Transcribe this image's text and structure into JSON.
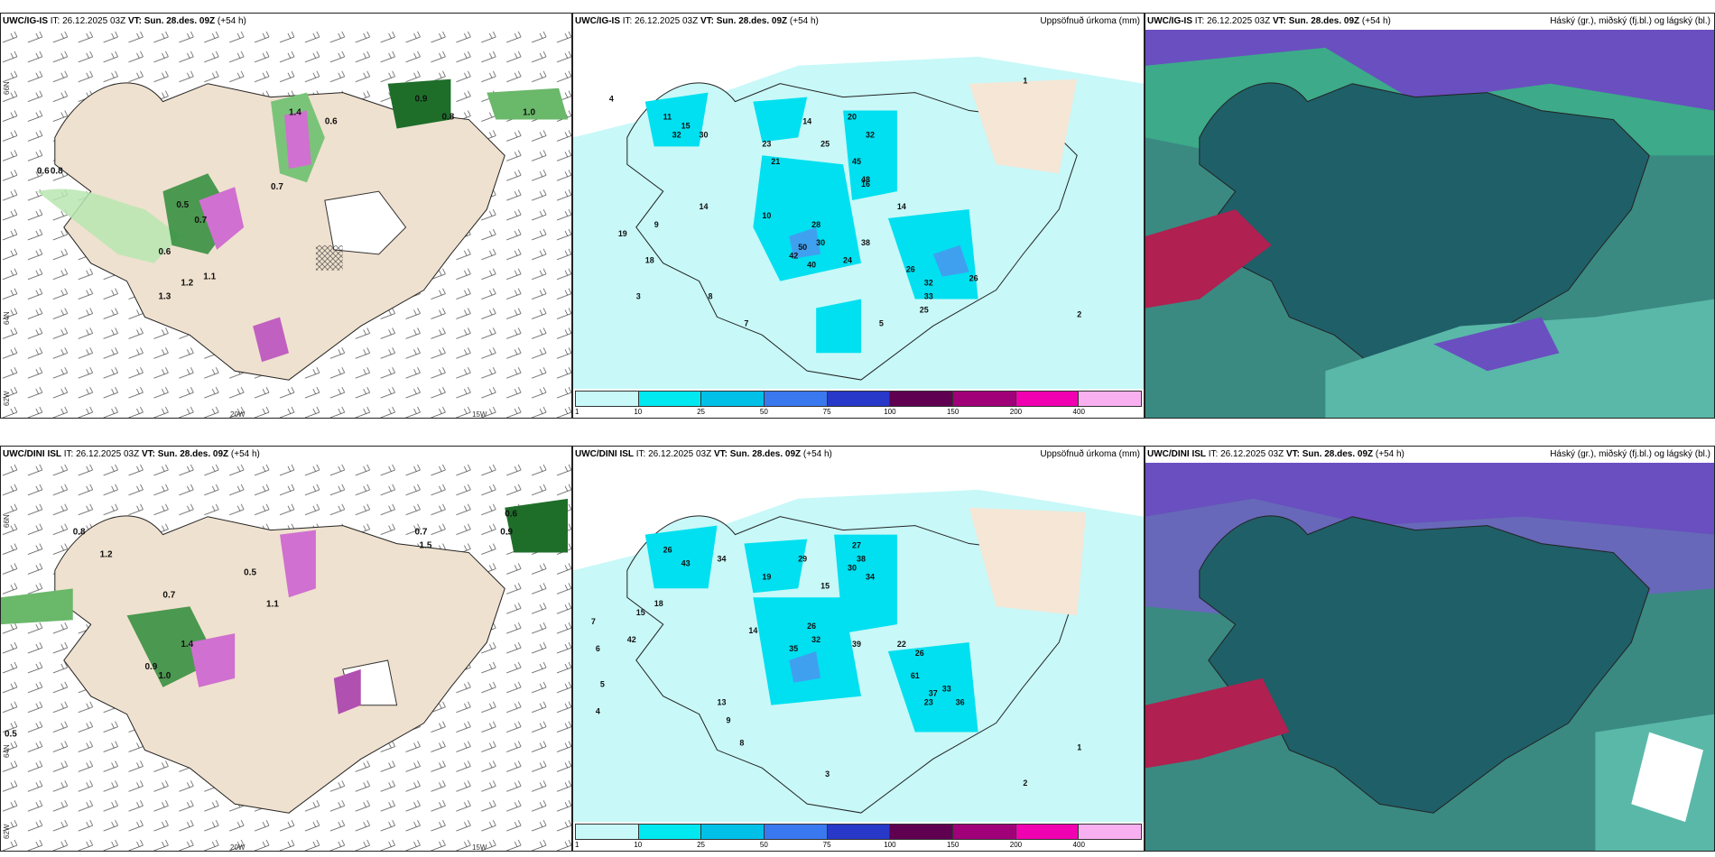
{
  "rows": [
    {
      "model": "UWC/IG-IS",
      "it_label": "IT: 26.12.2025 03Z",
      "vt_label": "VT: Sun. 28.des. 09Z",
      "lead": "(+54 h)",
      "precip_title": "Uppsöfnuð úrkoma (mm)",
      "cloud_title": "Háský (gr.), miðský (fj.bl.) og lágský (bl.)",
      "lon_labels": [
        "20W",
        "15W"
      ],
      "lat_labels": [
        "66N",
        "64N",
        "62W"
      ]
    },
    {
      "model": "UWC/DINI ISL",
      "it_label": "IT: 26.12.2025 03Z",
      "vt_label": "VT: Sun. 28.des. 09Z",
      "lead": "(+54 h)",
      "precip_title": "Uppsöfnuð úrkoma (mm)",
      "cloud_title": "Háský (gr.), miðský (fj.bl.) og lágský (bl.)",
      "lon_labels": [
        "20W",
        "15W"
      ],
      "lat_labels": [
        "66N",
        "64N",
        "62W"
      ]
    }
  ],
  "colorbar": {
    "labels": [
      "1",
      "10",
      "25",
      "50",
      "75",
      "100",
      "150",
      "200",
      "400"
    ],
    "colors": [
      "#c8f8f8",
      "#00e8f0",
      "#00c0e8",
      "#3a78f0",
      "#2838c8",
      "#600050",
      "#a00078",
      "#f000b0",
      "#f8b0f0"
    ]
  },
  "precip_values_top": [
    "11",
    "15",
    "32",
    "30",
    "23",
    "21",
    "14",
    "25",
    "20",
    "32",
    "45",
    "48",
    "16",
    "28",
    "30",
    "50",
    "42",
    "40",
    "24",
    "38",
    "14",
    "26",
    "32",
    "33",
    "25",
    "26",
    "14",
    "10",
    "19",
    "18",
    "9",
    "8",
    "7",
    "5",
    "4",
    "3",
    "2",
    "1"
  ],
  "precip_values_bottom": [
    "26",
    "43",
    "34",
    "19",
    "29",
    "27",
    "15",
    "30",
    "34",
    "38",
    "26",
    "32",
    "35",
    "39",
    "22",
    "26",
    "61",
    "37",
    "33",
    "23",
    "36",
    "18",
    "15",
    "42",
    "14",
    "13",
    "9",
    "8",
    "7",
    "6",
    "5",
    "4",
    "3",
    "2",
    "1"
  ],
  "wind_values_top": [
    "0.6",
    "0.8",
    "0.5",
    "0.7",
    "0.6",
    "1.3",
    "1.2",
    "1.1",
    "0.7",
    "1.4",
    "0.6",
    "0.9",
    "1.0",
    "0.8"
  ],
  "wind_values_bottom": [
    "0.8",
    "1.2",
    "0.7",
    "0.5",
    "1.1",
    "0.9",
    "1.0",
    "1.4",
    "0.6",
    "1.5",
    "0.5",
    "0.9",
    "0.7"
  ]
}
